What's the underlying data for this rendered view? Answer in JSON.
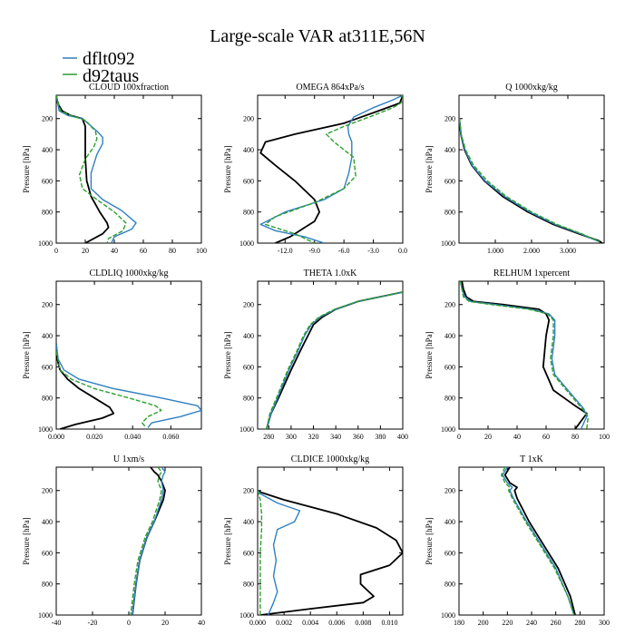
{
  "figure_title": "Large-scale VAR at311E,56N",
  "legend": [
    {
      "label": "dflt092",
      "color": "#2f7fc1"
    },
    {
      "label": "d92taus",
      "color": "#2ca02c"
    }
  ],
  "colors": {
    "control": "#000000",
    "dflt092": "#2f7fc1",
    "d92taus": "#2ca02c"
  },
  "ylabel": "Pressure [hPa]",
  "yticks": [
    200,
    400,
    600,
    800,
    1000
  ],
  "chart_data": [
    {
      "type": "line",
      "title": "CLOUD 100xfraction",
      "xlim": [
        0,
        100
      ],
      "ylim": [
        1000,
        50
      ],
      "xticks": [
        0,
        20,
        40,
        60,
        80,
        100
      ],
      "xticklabels": [
        "0",
        "20",
        "40",
        "60",
        "80",
        "100"
      ],
      "series": [
        {
          "color": "black",
          "x": [
            0,
            1,
            4,
            10,
            18,
            20,
            20,
            20,
            21,
            24,
            30,
            35,
            36,
            32,
            20
          ],
          "y": [
            50,
            100,
            150,
            180,
            200,
            250,
            350,
            450,
            600,
            700,
            800,
            870,
            900,
            940,
            1000
          ]
        },
        {
          "name": "dflt092",
          "color": "blue",
          "x": [
            0,
            2,
            8,
            18,
            28,
            32,
            32,
            28,
            24,
            24,
            32,
            45,
            55,
            52,
            40,
            38
          ],
          "y": [
            50,
            150,
            180,
            200,
            280,
            320,
            360,
            430,
            550,
            650,
            720,
            790,
            870,
            910,
            960,
            1000
          ]
        },
        {
          "name": "d92taus",
          "color": "green",
          "x": [
            0,
            3,
            10,
            20,
            27,
            28,
            26,
            20,
            16,
            18,
            28,
            40,
            48,
            46,
            36,
            35
          ],
          "y": [
            50,
            150,
            180,
            210,
            280,
            330,
            380,
            460,
            560,
            650,
            720,
            800,
            870,
            920,
            970,
            1000
          ]
        }
      ]
    },
    {
      "type": "line",
      "title": "OMEGA 864xPa/s",
      "xlim": [
        -14.8,
        0
      ],
      "ylim": [
        1000,
        50
      ],
      "xticks": [
        -12,
        -9,
        -6,
        -3,
        0
      ],
      "xticklabels": [
        "-12.0",
        "-9.0",
        "-6.0",
        "-3.0",
        "0.0"
      ],
      "series": [
        {
          "color": "black",
          "x": [
            0,
            -0.3,
            -2,
            -6,
            -11,
            -14,
            -14.5,
            -13,
            -11,
            -9,
            -8.5,
            -9,
            -10,
            -11.5,
            -13
          ],
          "y": [
            50,
            100,
            140,
            230,
            300,
            350,
            420,
            500,
            600,
            720,
            800,
            860,
            900,
            960,
            1000
          ]
        },
        {
          "name": "dflt092",
          "color": "blue",
          "x": [
            0,
            -1,
            -3,
            -5,
            -5.6,
            -5.5,
            -5.2,
            -5.2,
            -5.5,
            -6,
            -8,
            -12,
            -14.5,
            -13,
            -10,
            -8
          ],
          "y": [
            50,
            80,
            130,
            190,
            250,
            300,
            350,
            450,
            550,
            650,
            720,
            800,
            880,
            920,
            960,
            1000
          ]
        },
        {
          "name": "d92taus",
          "color": "green",
          "x": [
            0,
            0,
            -0.2,
            -1,
            -3,
            -6,
            -7.8,
            -7,
            -5,
            -4.8,
            -6,
            -9,
            -13,
            -14,
            -11,
            -9
          ],
          "y": [
            50,
            80,
            100,
            130,
            180,
            250,
            300,
            350,
            450,
            570,
            650,
            740,
            830,
            880,
            940,
            1000
          ]
        }
      ]
    },
    {
      "type": "line",
      "title": "Q 1000xkg/kg",
      "xlim": [
        0,
        4.0
      ],
      "ylim": [
        1000,
        50
      ],
      "xticks": [
        1,
        2,
        3
      ],
      "xticklabels": [
        "1.000",
        "2.000",
        "3.000"
      ],
      "series": [
        {
          "color": "black",
          "x": [
            0.01,
            0.05,
            0.15,
            0.35,
            0.7,
            1.2,
            1.9,
            2.6,
            3.3,
            3.85,
            3.95
          ],
          "y": [
            200,
            300,
            400,
            500,
            600,
            700,
            800,
            880,
            940,
            985,
            1000
          ]
        },
        {
          "name": "dflt092",
          "color": "blue",
          "x": [
            0.01,
            0.05,
            0.16,
            0.36,
            0.72,
            1.25,
            1.95,
            2.65,
            3.35,
            3.86
          ],
          "y": [
            200,
            300,
            400,
            500,
            600,
            700,
            800,
            880,
            940,
            990
          ]
        },
        {
          "name": "d92taus",
          "color": "green",
          "x": [
            0.01,
            0.06,
            0.18,
            0.4,
            0.78,
            1.3,
            2.0,
            2.7,
            3.38,
            3.87
          ],
          "y": [
            200,
            300,
            400,
            500,
            600,
            700,
            800,
            880,
            940,
            990
          ]
        }
      ]
    },
    {
      "type": "line",
      "title": "CLDLIQ 1000xkg/kg",
      "xlim": [
        0,
        0.076
      ],
      "ylim": [
        1000,
        50
      ],
      "xticks": [
        0,
        0.02,
        0.04,
        0.06
      ],
      "xticklabels": [
        "0.000",
        "0.020",
        "0.040",
        "0.060"
      ],
      "series": [
        {
          "color": "black",
          "x": [
            0,
            0.0005,
            0.002,
            0.006,
            0.012,
            0.02,
            0.028,
            0.03,
            0.024,
            0.01,
            0.002
          ],
          "y": [
            450,
            550,
            620,
            680,
            740,
            800,
            860,
            900,
            930,
            970,
            1000
          ]
        },
        {
          "name": "dflt092",
          "color": "blue",
          "x": [
            0,
            0.001,
            0.004,
            0.012,
            0.03,
            0.055,
            0.074,
            0.076,
            0.065,
            0.05,
            0.048
          ],
          "y": [
            450,
            550,
            620,
            680,
            740,
            800,
            850,
            880,
            920,
            960,
            990
          ]
        },
        {
          "name": "d92taus",
          "color": "green",
          "x": [
            0,
            0.002,
            0.008,
            0.02,
            0.038,
            0.052,
            0.055,
            0.048,
            0.045,
            0.047
          ],
          "y": [
            500,
            620,
            680,
            740,
            800,
            850,
            880,
            920,
            960,
            990
          ]
        }
      ]
    },
    {
      "type": "line",
      "title": "THETA 1.0xK",
      "xlim": [
        270,
        400
      ],
      "ylim": [
        1000,
        50
      ],
      "xticks": [
        280,
        300,
        320,
        340,
        360,
        380,
        400
      ],
      "xticklabels": [
        "280",
        "300",
        "320",
        "340",
        "360",
        "380",
        "400"
      ],
      "series": [
        {
          "color": "black",
          "x": [
            278,
            282,
            290,
            300,
            308,
            315,
            320,
            328,
            340,
            360,
            400
          ],
          "y": [
            1000,
            900,
            780,
            620,
            500,
            400,
            330,
            280,
            230,
            180,
            120
          ]
        },
        {
          "name": "dflt092",
          "color": "blue",
          "x": [
            278,
            282,
            289,
            298,
            306,
            312,
            318,
            326,
            340,
            360,
            400
          ],
          "y": [
            1000,
            900,
            780,
            620,
            500,
            400,
            330,
            280,
            230,
            180,
            120
          ]
        },
        {
          "name": "d92taus",
          "color": "green",
          "x": [
            278,
            281,
            288,
            297,
            305,
            311,
            317,
            325,
            339,
            360,
            400
          ],
          "y": [
            1000,
            900,
            780,
            620,
            500,
            400,
            330,
            280,
            230,
            180,
            120
          ]
        }
      ]
    },
    {
      "type": "line",
      "title": "RELHUM 1xpercent",
      "xlim": [
        0,
        100
      ],
      "ylim": [
        1000,
        50
      ],
      "xticks": [
        0,
        20,
        40,
        60,
        80,
        100
      ],
      "xticklabels": [
        "0",
        "20",
        "40",
        "60",
        "80",
        "100"
      ],
      "series": [
        {
          "color": "black",
          "x": [
            2,
            3,
            5,
            10,
            30,
            55,
            60,
            62,
            60,
            58,
            65,
            80,
            88,
            84,
            80
          ],
          "y": [
            50,
            100,
            150,
            180,
            200,
            230,
            260,
            300,
            400,
            600,
            750,
            850,
            900,
            950,
            1000
          ]
        },
        {
          "name": "dflt092",
          "color": "blue",
          "x": [
            1,
            2,
            4,
            8,
            25,
            50,
            62,
            66,
            66,
            64,
            66,
            75,
            86,
            88,
            84
          ],
          "y": [
            50,
            100,
            150,
            180,
            200,
            230,
            260,
            300,
            400,
            550,
            650,
            750,
            870,
            920,
            1000
          ]
        },
        {
          "name": "d92taus",
          "color": "green",
          "x": [
            1,
            2,
            3,
            7,
            22,
            48,
            61,
            65,
            65,
            63,
            65,
            74,
            85,
            89,
            88
          ],
          "y": [
            50,
            100,
            150,
            180,
            200,
            230,
            260,
            300,
            400,
            550,
            650,
            750,
            870,
            920,
            1000
          ]
        }
      ]
    },
    {
      "type": "line",
      "title": "U 1xm/s",
      "xlim": [
        -40,
        40
      ],
      "ylim": [
        1000,
        50
      ],
      "xticks": [
        -40,
        -20,
        0,
        20,
        40
      ],
      "xticklabels": [
        "-40",
        "-20",
        "0",
        "20",
        "40"
      ],
      "series": [
        {
          "color": "black",
          "x": [
            12,
            14,
            16,
            18,
            20,
            19,
            14,
            10,
            6,
            4,
            3,
            2
          ],
          "y": [
            50,
            80,
            100,
            140,
            200,
            260,
            400,
            500,
            650,
            800,
            900,
            1000
          ]
        },
        {
          "name": "dflt092",
          "color": "blue",
          "x": [
            18,
            20,
            19,
            18,
            19,
            18,
            14,
            10,
            6,
            4,
            3,
            2
          ],
          "y": [
            50,
            80,
            100,
            140,
            200,
            260,
            400,
            500,
            650,
            800,
            900,
            1000
          ]
        },
        {
          "name": "d92taus",
          "color": "green",
          "x": [
            16,
            18,
            17,
            16,
            18,
            17,
            13,
            9,
            5,
            3,
            2,
            1
          ],
          "y": [
            50,
            80,
            100,
            140,
            200,
            260,
            400,
            500,
            650,
            800,
            900,
            1000
          ]
        }
      ]
    },
    {
      "type": "line",
      "title": "CLDICE 1000xkg/kg",
      "xlim": [
        0,
        0.011
      ],
      "ylim": [
        1000,
        50
      ],
      "xticks": [
        0,
        0.002,
        0.004,
        0.006,
        0.008,
        0.01
      ],
      "xticklabels": [
        "0.000",
        "0.002",
        "0.004",
        "0.006",
        "0.008",
        "0.010"
      ],
      "series": [
        {
          "color": "black",
          "x": [
            0,
            0.0002,
            0.002,
            0.006,
            0.009,
            0.0105,
            0.011,
            0.01,
            0.0078,
            0.0078,
            0.0088,
            0.008,
            0.004,
            0.0002
          ],
          "y": [
            200,
            210,
            260,
            350,
            440,
            520,
            600,
            680,
            740,
            800,
            880,
            920,
            960,
            1000
          ]
        },
        {
          "name": "dflt092",
          "color": "blue",
          "x": [
            0,
            0.0002,
            0.0015,
            0.0032,
            0.0028,
            0.0015,
            0.0012,
            0.0014,
            0.0012,
            0.0015,
            0.0012,
            0.0008
          ],
          "y": [
            200,
            220,
            280,
            330,
            400,
            450,
            550,
            650,
            750,
            850,
            920,
            1000
          ]
        },
        {
          "name": "d92taus",
          "color": "green",
          "x": [
            0,
            0.0002,
            0.0003,
            0.0003,
            0.0002,
            0.0002,
            0.0002,
            0.0002
          ],
          "y": [
            200,
            260,
            350,
            450,
            600,
            750,
            900,
            1000
          ]
        }
      ]
    },
    {
      "type": "line",
      "title": "T 1xK",
      "xlim": [
        180,
        300
      ],
      "ylim": [
        1000,
        50
      ],
      "xticks": [
        180,
        200,
        220,
        240,
        260,
        280,
        300
      ],
      "xticklabels": [
        "180",
        "200",
        "220",
        "240",
        "260",
        "280",
        "300"
      ],
      "series": [
        {
          "color": "black",
          "x": [
            222,
            218,
            222,
            228,
            226,
            228,
            238,
            250,
            262,
            272,
            276
          ],
          "y": [
            50,
            100,
            150,
            180,
            200,
            250,
            400,
            550,
            700,
            880,
            1000
          ]
        },
        {
          "name": "dflt092",
          "color": "blue",
          "x": [
            220,
            216,
            220,
            224,
            222,
            225,
            236,
            248,
            260,
            270,
            275
          ],
          "y": [
            50,
            100,
            150,
            180,
            200,
            250,
            400,
            550,
            700,
            880,
            1000
          ]
        },
        {
          "name": "d92taus",
          "color": "green",
          "x": [
            218,
            215,
            218,
            222,
            221,
            224,
            235,
            247,
            259,
            270,
            275
          ],
          "y": [
            50,
            100,
            150,
            180,
            200,
            250,
            400,
            550,
            700,
            880,
            1000
          ]
        }
      ]
    }
  ]
}
